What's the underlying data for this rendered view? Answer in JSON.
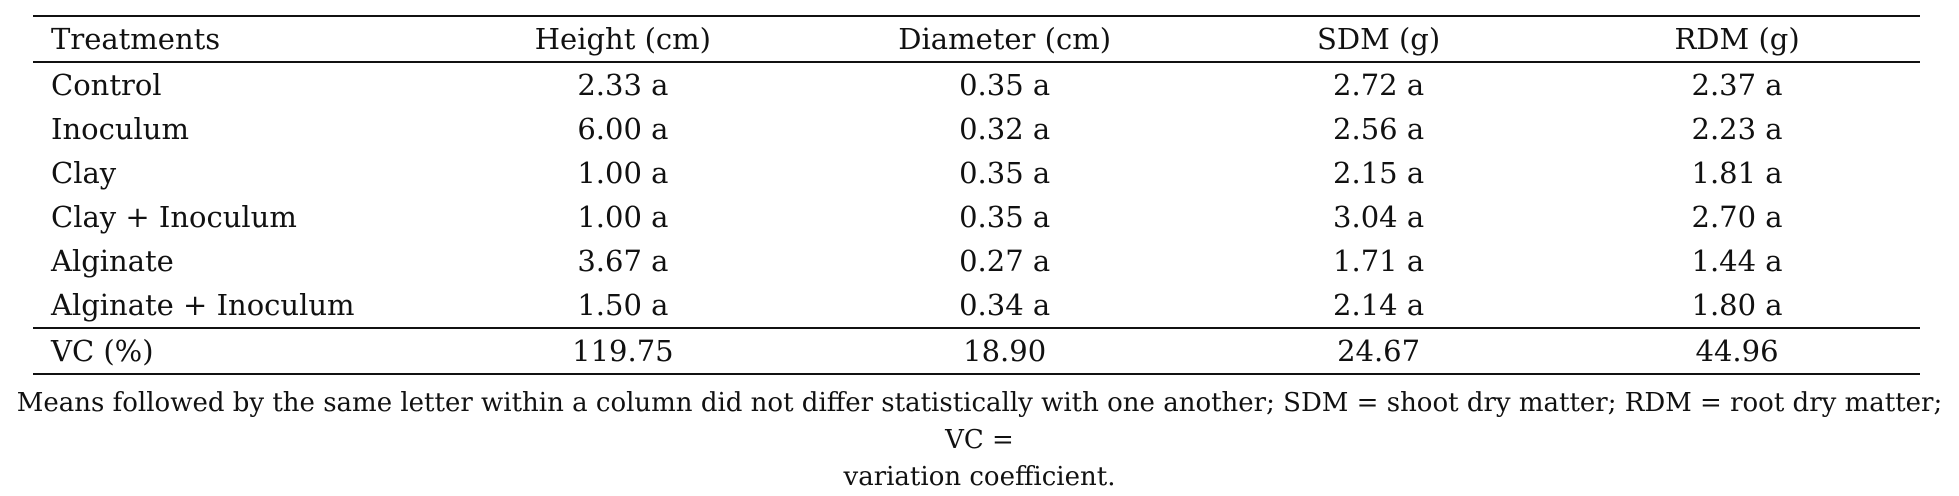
{
  "table": {
    "headers": [
      "Treatments",
      "Height (cm)",
      "Diameter (cm)",
      "SDM (g)",
      "RDM (g)"
    ],
    "rows": [
      [
        "Control",
        "2.33 a",
        "0.35 a",
        "2.72 a",
        "2.37 a"
      ],
      [
        "Inoculum",
        "6.00 a",
        "0.32 a",
        "2.56 a",
        "2.23 a"
      ],
      [
        "Clay",
        "1.00 a",
        "0.35 a",
        "2.15 a",
        "1.81 a"
      ],
      [
        "Clay + Inoculum",
        "1.00 a",
        "0.35 a",
        "3.04 a",
        "2.70 a"
      ],
      [
        "Alginate",
        "3.67 a",
        "0.27 a",
        "1.71 a",
        "1.44 a"
      ],
      [
        "Alginate + Inoculum",
        "1.50 a",
        "0.34 a",
        "2.14 a",
        "1.80 a"
      ]
    ],
    "footer": [
      "VC (%)",
      "119.75",
      "18.90",
      "24.67",
      "44.96"
    ]
  },
  "note": {
    "line1": "Means followed by the same letter within a column did not differ statistically with one another; SDM = shoot dry matter; RDM = root dry matter; VC =",
    "line2": "variation coefficient."
  }
}
